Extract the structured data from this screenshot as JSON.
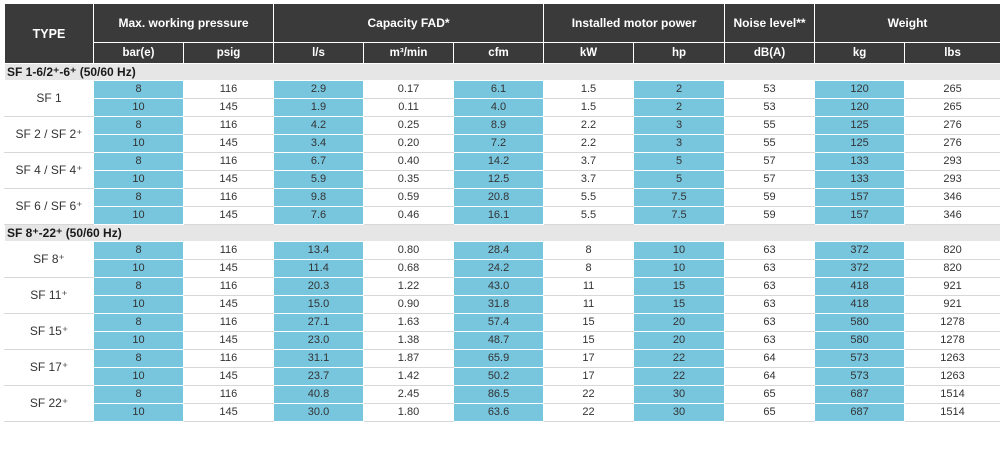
{
  "header": {
    "type": "TYPE",
    "pressure": "Max. working pressure",
    "capacity": "Capacity FAD*",
    "motor": "Installed motor power",
    "noise": "Noise level**",
    "weight": "Weight",
    "units": [
      "bar(e)",
      "psig",
      "l/s",
      "m³/min",
      "cfm",
      "kW",
      "hp",
      "dB(A)",
      "kg",
      "lbs"
    ]
  },
  "groups": [
    {
      "title": "SF 1-6/2⁺-6⁺ (50/60 Hz)",
      "models": [
        {
          "name": "SF 1",
          "rows": [
            [
              "8",
              "116",
              "2.9",
              "0.17",
              "6.1",
              "1.5",
              "2",
              "53",
              "120",
              "265"
            ],
            [
              "10",
              "145",
              "1.9",
              "0.11",
              "4.0",
              "1.5",
              "2",
              "53",
              "120",
              "265"
            ]
          ]
        },
        {
          "name": "SF 2 / SF 2⁺",
          "rows": [
            [
              "8",
              "116",
              "4.2",
              "0.25",
              "8.9",
              "2.2",
              "3",
              "55",
              "125",
              "276"
            ],
            [
              "10",
              "145",
              "3.4",
              "0.20",
              "7.2",
              "2.2",
              "3",
              "55",
              "125",
              "276"
            ]
          ]
        },
        {
          "name": "SF 4 / SF 4⁺",
          "rows": [
            [
              "8",
              "116",
              "6.7",
              "0.40",
              "14.2",
              "3.7",
              "5",
              "57",
              "133",
              "293"
            ],
            [
              "10",
              "145",
              "5.9",
              "0.35",
              "12.5",
              "3.7",
              "5",
              "57",
              "133",
              "293"
            ]
          ]
        },
        {
          "name": "SF 6 / SF 6⁺",
          "rows": [
            [
              "8",
              "116",
              "9.8",
              "0.59",
              "20.8",
              "5.5",
              "7.5",
              "59",
              "157",
              "346"
            ],
            [
              "10",
              "145",
              "7.6",
              "0.46",
              "16.1",
              "5.5",
              "7.5",
              "59",
              "157",
              "346"
            ]
          ]
        }
      ]
    },
    {
      "title": "SF 8⁺-22⁺ (50/60 Hz)",
      "models": [
        {
          "name": "SF 8⁺",
          "rows": [
            [
              "8",
              "116",
              "13.4",
              "0.80",
              "28.4",
              "8",
              "10",
              "63",
              "372",
              "820"
            ],
            [
              "10",
              "145",
              "11.4",
              "0.68",
              "24.2",
              "8",
              "10",
              "63",
              "372",
              "820"
            ]
          ]
        },
        {
          "name": "SF 11⁺",
          "rows": [
            [
              "8",
              "116",
              "20.3",
              "1.22",
              "43.0",
              "11",
              "15",
              "63",
              "418",
              "921"
            ],
            [
              "10",
              "145",
              "15.0",
              "0.90",
              "31.8",
              "11",
              "15",
              "63",
              "418",
              "921"
            ]
          ]
        },
        {
          "name": "SF 15⁺",
          "rows": [
            [
              "8",
              "116",
              "27.1",
              "1.63",
              "57.4",
              "15",
              "20",
              "63",
              "580",
              "1278"
            ],
            [
              "10",
              "145",
              "23.0",
              "1.38",
              "48.7",
              "15",
              "20",
              "63",
              "580",
              "1278"
            ]
          ]
        },
        {
          "name": "SF 17⁺",
          "rows": [
            [
              "8",
              "116",
              "31.1",
              "1.87",
              "65.9",
              "17",
              "22",
              "64",
              "573",
              "1263"
            ],
            [
              "10",
              "145",
              "23.7",
              "1.42",
              "50.2",
              "17",
              "22",
              "64",
              "573",
              "1263"
            ]
          ]
        },
        {
          "name": "SF 22⁺",
          "rows": [
            [
              "8",
              "116",
              "40.8",
              "2.45",
              "86.5",
              "22",
              "30",
              "65",
              "687",
              "1514"
            ],
            [
              "10",
              "145",
              "30.0",
              "1.80",
              "63.6",
              "22",
              "30",
              "65",
              "687",
              "1514"
            ]
          ]
        }
      ]
    }
  ],
  "colors": {
    "header_bg": "#3a3a3a",
    "section_bg": "#e6e6e6",
    "highlight_blue": "#78c5de"
  }
}
